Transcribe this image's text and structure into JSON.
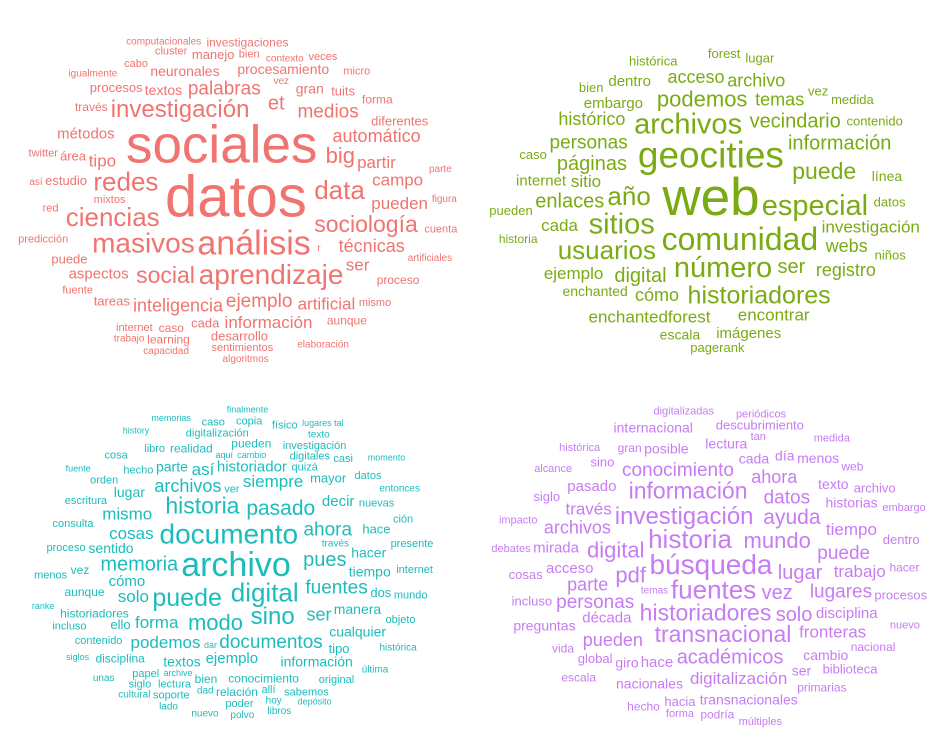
{
  "chart_data": [
    {
      "type": "wordcloud",
      "color": "#f07470",
      "words": [
        [
          "datos",
          5.3
        ],
        [
          "sociales",
          4.8
        ],
        [
          "análisis",
          3.1
        ],
        [
          "aprendizaje",
          2.5
        ],
        [
          "masivos",
          2.5
        ],
        [
          "ciencias",
          2.4
        ],
        [
          "data",
          2.4
        ],
        [
          "redes",
          2.4
        ],
        [
          "investigación",
          2.2
        ],
        [
          "sociología",
          2.1
        ],
        [
          "social",
          2.1
        ],
        [
          "big",
          2.0
        ],
        [
          "et",
          1.8
        ],
        [
          "ejemplo",
          1.7
        ],
        [
          "palabras",
          1.7
        ],
        [
          "medios",
          1.7
        ],
        [
          "técnicas",
          1.6
        ],
        [
          "inteligencia",
          1.6
        ],
        [
          "automático",
          1.6
        ],
        [
          "información",
          1.5
        ],
        [
          "tipo",
          1.5
        ],
        [
          "partir",
          1.5
        ],
        [
          "campo",
          1.5
        ],
        [
          "pueden",
          1.5
        ],
        [
          "artificial",
          1.5
        ],
        [
          "aspectos",
          1.4
        ],
        [
          "métodos",
          1.4
        ],
        [
          "ser",
          1.5
        ],
        [
          "textos",
          1.3
        ],
        [
          "neuronales",
          1.3
        ],
        [
          "procesamiento",
          1.3
        ],
        [
          "gran",
          1.3
        ],
        [
          "estudio",
          1.2
        ],
        [
          "cada",
          1.2
        ],
        [
          "área",
          1.2
        ],
        [
          "desarrollo",
          1.2
        ],
        [
          "procesos",
          1.2
        ],
        [
          "tareas",
          1.2
        ],
        [
          "manejo",
          1.2
        ],
        [
          "diferentes",
          1.2
        ],
        [
          "proceso",
          1.1
        ],
        [
          "tuits",
          1.2
        ],
        [
          "puede",
          1.2
        ],
        [
          "aunque",
          1.1
        ],
        [
          "caso",
          1.1
        ],
        [
          "través",
          1.1
        ],
        [
          "investigaciones",
          1.1
        ],
        [
          "forma",
          1.1
        ],
        [
          "learning",
          1.1
        ],
        [
          "mixtos",
          1.0
        ],
        [
          "mismo",
          1.0
        ],
        [
          "sentimientos",
          1.0
        ],
        [
          "internet",
          1.0
        ],
        [
          "red",
          1.0
        ],
        [
          "fuente",
          1.0
        ],
        [
          "predicción",
          1.0
        ],
        [
          "twitter",
          1.0
        ],
        [
          "bien",
          1.0
        ],
        [
          "cluster",
          1.0
        ],
        [
          "veces",
          1.0
        ],
        [
          "micro",
          1.0
        ],
        [
          "cuenta",
          1.0
        ],
        [
          "cabo",
          1.0
        ],
        [
          "contexto",
          0.95
        ],
        [
          "vez",
          0.95
        ],
        [
          "parte",
          0.95
        ],
        [
          "elaboración",
          0.95
        ],
        [
          "artificiales",
          0.95
        ],
        [
          "algoritmos",
          0.95
        ],
        [
          "capacidad",
          0.95
        ],
        [
          "igualmente",
          0.9
        ],
        [
          "computacionales",
          0.9
        ],
        [
          "figura",
          0.9
        ],
        [
          "trabajo",
          0.9
        ],
        [
          "así",
          0.9
        ],
        [
          "r",
          0.9
        ]
      ]
    },
    {
      "type": "wordcloud",
      "color": "#7aab13",
      "words": [
        [
          "web",
          4.8
        ],
        [
          "geocities",
          3.4
        ],
        [
          "comunidad",
          2.9
        ],
        [
          "número",
          2.6
        ],
        [
          "archivos",
          2.6
        ],
        [
          "especial",
          2.6
        ],
        [
          "sitios",
          2.6
        ],
        [
          "año",
          2.4
        ],
        [
          "usuarios",
          2.4
        ],
        [
          "historiadores",
          2.3
        ],
        [
          "puede",
          2.1
        ],
        [
          "podemos",
          2.0
        ],
        [
          "páginas",
          1.8
        ],
        [
          "digital",
          1.8
        ],
        [
          "vecindario",
          1.8
        ],
        [
          "información",
          1.8
        ],
        [
          "enlaces",
          1.8
        ],
        [
          "ser",
          1.8
        ],
        [
          "personas",
          1.7
        ],
        [
          "cómo",
          1.6
        ],
        [
          "temas",
          1.6
        ],
        [
          "webs",
          1.6
        ],
        [
          "histórico",
          1.6
        ],
        [
          "acceso",
          1.6
        ],
        [
          "archivo",
          1.6
        ],
        [
          "registro",
          1.6
        ],
        [
          "investigación",
          1.5
        ],
        [
          "encontrar",
          1.5
        ],
        [
          "enchantedforest",
          1.5
        ],
        [
          "sitio",
          1.5
        ],
        [
          "ejemplo",
          1.5
        ],
        [
          "cada",
          1.5
        ],
        [
          "embargo",
          1.4
        ],
        [
          "internet",
          1.4
        ],
        [
          "dentro",
          1.4
        ],
        [
          "imágenes",
          1.4
        ],
        [
          "enchanted",
          1.3
        ],
        [
          "línea",
          1.3
        ],
        [
          "escala",
          1.3
        ],
        [
          "histórica",
          1.2
        ],
        [
          "vez",
          1.2
        ],
        [
          "datos",
          1.2
        ],
        [
          "forest",
          1.2
        ],
        [
          "caso",
          1.2
        ],
        [
          "bien",
          1.2
        ],
        [
          "lugar",
          1.2
        ],
        [
          "contenido",
          1.2
        ],
        [
          "pagerank",
          1.2
        ],
        [
          "medida",
          1.2
        ],
        [
          "niños",
          1.2
        ],
        [
          "pueden",
          1.2
        ],
        [
          "historia",
          1.1
        ]
      ]
    },
    {
      "type": "wordcloud",
      "color": "#1dbcbc",
      "words": [
        [
          "archivo",
          3.1
        ],
        [
          "documento",
          2.5
        ],
        [
          "digital",
          2.4
        ],
        [
          "puede",
          2.3
        ],
        [
          "sino",
          2.2
        ],
        [
          "historia",
          2.1
        ],
        [
          "modo",
          2.0
        ],
        [
          "pasado",
          1.9
        ],
        [
          "memoria",
          1.8
        ],
        [
          "pues",
          1.8
        ],
        [
          "documentos",
          1.7
        ],
        [
          "ahora",
          1.7
        ],
        [
          "fuentes",
          1.7
        ],
        [
          "archivos",
          1.6
        ],
        [
          "forma",
          1.5
        ],
        [
          "siempre",
          1.5
        ],
        [
          "solo",
          1.5
        ],
        [
          "podemos",
          1.5
        ],
        [
          "cosas",
          1.5
        ],
        [
          "mismo",
          1.5
        ],
        [
          "así",
          1.5
        ],
        [
          "ser",
          1.6
        ],
        [
          "ejemplo",
          1.4
        ],
        [
          "historiador",
          1.4
        ],
        [
          "cómo",
          1.4
        ],
        [
          "decir",
          1.4
        ],
        [
          "sentido",
          1.3
        ],
        [
          "tiempo",
          1.3
        ],
        [
          "manera",
          1.3
        ],
        [
          "información",
          1.3
        ],
        [
          "hacer",
          1.3
        ],
        [
          "textos",
          1.3
        ],
        [
          "lugar",
          1.3
        ],
        [
          "parte",
          1.3
        ],
        [
          "cualquier",
          1.3
        ],
        [
          "mayor",
          1.2
        ],
        [
          "ello",
          1.2
        ],
        [
          "hace",
          1.2
        ],
        [
          "dos",
          1.2
        ],
        [
          "tipo",
          1.2
        ],
        [
          "conocimiento",
          1.1
        ],
        [
          "historiadores",
          1.1
        ],
        [
          "bien",
          1.1
        ],
        [
          "aunque",
          1.1
        ],
        [
          "realidad",
          1.1
        ],
        [
          "pueden",
          1.1
        ],
        [
          "relación",
          1.1
        ],
        [
          "disciplina",
          1.1
        ],
        [
          "vez",
          1.1
        ],
        [
          "digitales",
          1.0
        ],
        [
          "nuevas",
          1.0
        ],
        [
          "quizá",
          1.0
        ],
        [
          "hecho",
          1.0
        ],
        [
          "contenido",
          1.0
        ],
        [
          "proceso",
          1.0
        ],
        [
          "lectura",
          1.0
        ],
        [
          "ver",
          1.0
        ],
        [
          "digitalización",
          1.0
        ],
        [
          "consulta",
          1.0
        ],
        [
          "escritura",
          1.0
        ],
        [
          "investigación",
          1.0
        ],
        [
          "papel",
          1.0
        ],
        [
          "presente",
          1.0
        ],
        [
          "orden",
          1.0
        ],
        [
          "libro",
          1.0
        ],
        [
          "datos",
          1.0
        ],
        [
          "internet",
          1.0
        ],
        [
          "mundo",
          1.0
        ],
        [
          "original",
          1.0
        ],
        [
          "objeto",
          1.0
        ],
        [
          "sabemos",
          1.0
        ],
        [
          "poder",
          1.0
        ],
        [
          "soporte",
          1.0
        ],
        [
          "siglo",
          1.0
        ],
        [
          "incluso",
          1.0
        ],
        [
          "menos",
          1.0
        ],
        [
          "cosa",
          1.0
        ],
        [
          "caso",
          1.0
        ],
        [
          "casi",
          1.0
        ],
        [
          "copia",
          1.0
        ],
        [
          "físico",
          1.0
        ],
        [
          "través",
          0.95
        ],
        [
          "dad",
          0.95
        ],
        [
          "texto",
          0.9
        ],
        [
          "ción",
          1.0
        ],
        [
          "allí",
          1.0
        ],
        [
          "entonces",
          0.9
        ],
        [
          "histórica",
          0.9
        ],
        [
          "última",
          0.9
        ],
        [
          "libros",
          0.9
        ],
        [
          "polvo",
          0.9
        ],
        [
          "nuevo",
          0.9
        ],
        [
          "lado",
          0.9
        ],
        [
          "hoy",
          0.9
        ],
        [
          "cultural",
          0.9
        ],
        [
          "aquí",
          0.85
        ],
        [
          "cambio",
          0.85
        ],
        [
          "dar",
          0.85
        ],
        [
          "archive",
          0.85
        ],
        [
          "depósito",
          0.85
        ],
        [
          "memorias",
          0.8
        ],
        [
          "siglos",
          0.85
        ],
        [
          "finalmente",
          0.8
        ],
        [
          "ranke",
          0.85
        ],
        [
          "lugares tal",
          0.8
        ],
        [
          "fuente",
          0.85
        ],
        [
          "history",
          0.85
        ],
        [
          "momento",
          0.8
        ],
        [
          "unas",
          0.9
        ]
      ]
    },
    {
      "type": "wordcloud",
      "color": "#c77cf3",
      "words": [
        [
          "búsqueda",
          2.5
        ],
        [
          "fuentes",
          2.4
        ],
        [
          "historia",
          2.4
        ],
        [
          "investigación",
          2.2
        ],
        [
          "historiadores",
          2.1
        ],
        [
          "transnacional",
          2.1
        ],
        [
          "información",
          2.1
        ],
        [
          "mundo",
          2.0
        ],
        [
          "pdf",
          2.0
        ],
        [
          "digital",
          2.0
        ],
        [
          "ayuda",
          1.9
        ],
        [
          "lugar",
          1.8
        ],
        [
          "académicos",
          1.8
        ],
        [
          "vez",
          1.8
        ],
        [
          "solo",
          1.8
        ],
        [
          "personas",
          1.7
        ],
        [
          "conocimiento",
          1.7
        ],
        [
          "datos",
          1.7
        ],
        [
          "lugares",
          1.7
        ],
        [
          "puede",
          1.7
        ],
        [
          "pueden",
          1.6
        ],
        [
          "parte",
          1.6
        ],
        [
          "ahora",
          1.6
        ],
        [
          "archivos",
          1.6
        ],
        [
          "través",
          1.5
        ],
        [
          "tiempo",
          1.5
        ],
        [
          "digitalización",
          1.5
        ],
        [
          "trabajo",
          1.5
        ],
        [
          "fronteras",
          1.5
        ],
        [
          "década",
          1.4
        ],
        [
          "acceso",
          1.4
        ],
        [
          "disciplina",
          1.4
        ],
        [
          "hace",
          1.4
        ],
        [
          "mirada",
          1.4
        ],
        [
          "pasado",
          1.4
        ],
        [
          "posible",
          1.3
        ],
        [
          "cada",
          1.3
        ],
        [
          "lectura",
          1.3
        ],
        [
          "historias",
          1.3
        ],
        [
          "cambio",
          1.3
        ],
        [
          "nacionales",
          1.3
        ],
        [
          "transnacionales",
          1.3
        ],
        [
          "texto",
          1.3
        ],
        [
          "giro",
          1.3
        ],
        [
          "día",
          1.3
        ],
        [
          "preguntas",
          1.3
        ],
        [
          "menos",
          1.3
        ],
        [
          "internacional",
          1.3
        ],
        [
          "ser",
          1.3
        ],
        [
          "global",
          1.2
        ],
        [
          "sino",
          1.2
        ],
        [
          "incluso",
          1.2
        ],
        [
          "descubrimiento",
          1.2
        ],
        [
          "archivo",
          1.2
        ],
        [
          "biblioteca",
          1.2
        ],
        [
          "hacia",
          1.2
        ],
        [
          "cosas",
          1.2
        ],
        [
          "procesos",
          1.2
        ],
        [
          "dentro",
          1.2
        ],
        [
          "siglo",
          1.2
        ],
        [
          "nacional",
          1.1
        ],
        [
          "primarias",
          1.1
        ],
        [
          "podría",
          1.1
        ],
        [
          "hacer",
          1.1
        ],
        [
          "hecho",
          1.1
        ],
        [
          "escala",
          1.1
        ],
        [
          "gran",
          1.1
        ],
        [
          "vida",
          1.1
        ],
        [
          "debates",
          1.0
        ],
        [
          "impacto",
          1.0
        ],
        [
          "tan",
          1.0
        ],
        [
          "forma",
          1.0
        ],
        [
          "alcance",
          1.0
        ],
        [
          "histórica",
          1.0
        ],
        [
          "digitalizadas",
          1.0
        ],
        [
          "periódicos",
          1.0
        ],
        [
          "medida",
          1.0
        ],
        [
          "embargo",
          1.0
        ],
        [
          "nuevo",
          1.0
        ],
        [
          "temas",
          0.9
        ],
        [
          "web",
          1.1
        ],
        [
          "múltiples",
          1.0
        ]
      ]
    }
  ]
}
